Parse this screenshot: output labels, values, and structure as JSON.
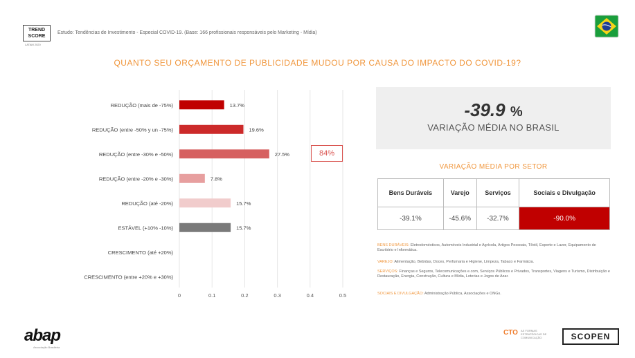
{
  "header": {
    "logo_line1": "TREND",
    "logo_line2": "SCORE",
    "logo_sub": "LATAM 2020",
    "study_text": "Estudo: Tendências de Investimento - Especial COVID-19. (Base: 166 profissionais responsáveis pelo Marketing - Mídia)",
    "title": "QUANTO SEU ORÇAMENTO DE PUBLICIDADE MUDOU POR CAUSA DO IMPACTO DO COVID-19?"
  },
  "chart_data": {
    "type": "bar",
    "orientation": "horizontal",
    "categories": [
      "REDUÇÃO (mais de -75%)",
      "REDUÇÃO (entre -50% y un -75%)",
      "REDUÇÃO (entre -30% e -50%)",
      "REDUÇÃO (entre -20% e -30%)",
      "REDUÇÃO (até -20%)",
      "ESTÁVEL (+10% -10%)",
      "CRESCIMENTO (até +20%)",
      "CRESCIMENTO (entre +20% e +30%)"
    ],
    "values": [
      0.137,
      0.196,
      0.275,
      0.078,
      0.157,
      0.157,
      0,
      0
    ],
    "value_labels": [
      "13.7%",
      "19.6%",
      "27.5%",
      "7.8%",
      "15.7%",
      "15.7%",
      "",
      ""
    ],
    "colors": [
      "#c00000",
      "#cc2a2a",
      "#d66060",
      "#e79f9f",
      "#f1cccc",
      "#7a7a7a",
      "#ffffff",
      "#ffffff"
    ],
    "xlim": [
      0,
      0.5
    ],
    "xticks": [
      "0",
      "0.1",
      "0.2",
      "0.3",
      "0.4",
      "0.5"
    ],
    "grid": true
  },
  "callout": "84%",
  "average": {
    "value": "-39.9",
    "unit": "%",
    "caption": "VARIAÇÃO MÉDIA NO BRASIL"
  },
  "sectors": {
    "title": "VARIAÇÃO MÉDIA POR SETOR",
    "headers": [
      "Bens Duráveis",
      "Varejo",
      "Serviços",
      "Sociais e Divulgação"
    ],
    "values": [
      "-39.1%",
      "-45.6%",
      "-32.7%",
      "-90.0%"
    ]
  },
  "legend": [
    {
      "key": "BENS DURÁVEIS:",
      "text": "Eletrodomésticos, Automóveis Industrial e Agrícola, Artigos Pessoais, Têxtil, Esporte e Lazer, Equipamento de Escritório e Informática."
    },
    {
      "key": "VAREJO:",
      "text": "Alimentação, Bebidas, Doces, Perfumaria e Higiene, Limpeza, Tabaco e Farmácia."
    },
    {
      "key": "SERVIÇOS:",
      "text": "Finanças e Seguros, Telecomunicações e.com, Serviços Públicos e Privados, Transportes, Viagens e Turismo, Distribuição e Restauração, Energia, Construção, Cultura e Mídia, Loterias e Jogos de Azar."
    },
    {
      "key": "SOCIAIS E DIVULGAÇÃO:",
      "text": "Administração Pública, Associações e ONGs."
    }
  ],
  "footer": {
    "abap": "abap",
    "abap_sub": "Associação Brasileira",
    "cto": "CTO",
    "cto_text": "AS FORMAS ESTRATÉGICAS DE COMUNICAÇÃO",
    "scopen": "SCOPEN"
  },
  "colors": {
    "accent": "#f0963c",
    "highlight": "#c00000"
  }
}
